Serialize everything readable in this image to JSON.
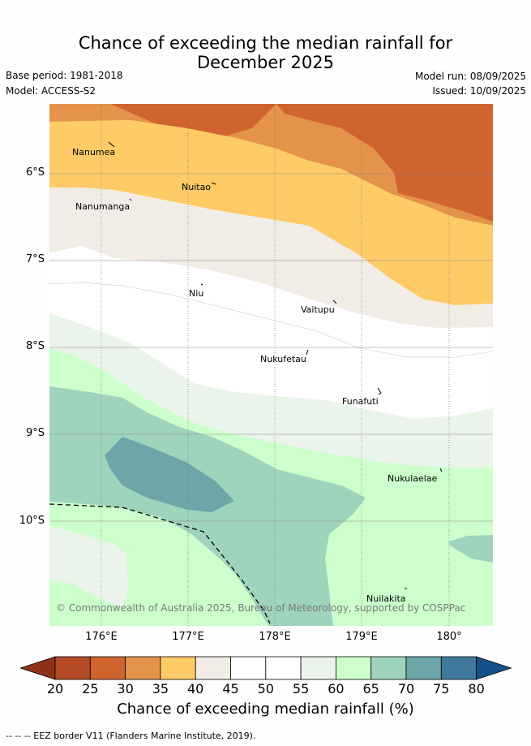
{
  "title": {
    "line1": "Chance of exceeding the median rainfall for",
    "line2": "December 2025"
  },
  "meta": {
    "base_period": "Base period: 1981-2018",
    "model": "Model: ACCESS-S2",
    "model_run": "Model run: 08/09/2025",
    "issued": "Issued: 10/09/2025"
  },
  "axes": {
    "lat_labels": [
      "6°S",
      "7°S",
      "8°S",
      "9°S",
      "10°S"
    ],
    "lon_labels": [
      "176°E",
      "177°E",
      "178°E",
      "179°E",
      "180°"
    ]
  },
  "places": [
    {
      "name": "Nanumea"
    },
    {
      "name": "Nuitao"
    },
    {
      "name": "Nanumanga"
    },
    {
      "name": "Niu"
    },
    {
      "name": "Vaitupu"
    },
    {
      "name": "Nukufetau"
    },
    {
      "name": "Funafuti"
    },
    {
      "name": "Nukulaelae"
    },
    {
      "name": "Nuilakita"
    }
  ],
  "copyright": "© Commonwealth of Australia 2025, Bureau of Meteorology, supported by COSPPac",
  "colorbar": {
    "ticks": [
      "20",
      "25",
      "30",
      "35",
      "40",
      "45",
      "50",
      "55",
      "60",
      "65",
      "70",
      "75",
      "80"
    ],
    "colors": [
      "#8b3218",
      "#b44a24",
      "#d0642e",
      "#e3934a",
      "#fecb66",
      "#f1ece6",
      "#ffffff",
      "#ffffff",
      "#ebf4ea",
      "#ccffcc",
      "#9ed3bc",
      "#6ea5a8",
      "#3f7a9c",
      "#15508a"
    ],
    "title": "Chance of exceeding median rainfall (%)"
  },
  "footer": "-- -- -- EEZ border V11 (Flanders Marine Institute, 2019).",
  "chart_data": {
    "type": "heatmap",
    "title": "Chance of exceeding the median rainfall for December 2025",
    "x_axis": "longitude",
    "y_axis": "latitude",
    "xlim": [
      "175.4°E",
      "180.5°E"
    ],
    "ylim": [
      "11.2°S",
      "5.2°S"
    ],
    "value_range": [
      20,
      80
    ],
    "unit": "%"
  }
}
